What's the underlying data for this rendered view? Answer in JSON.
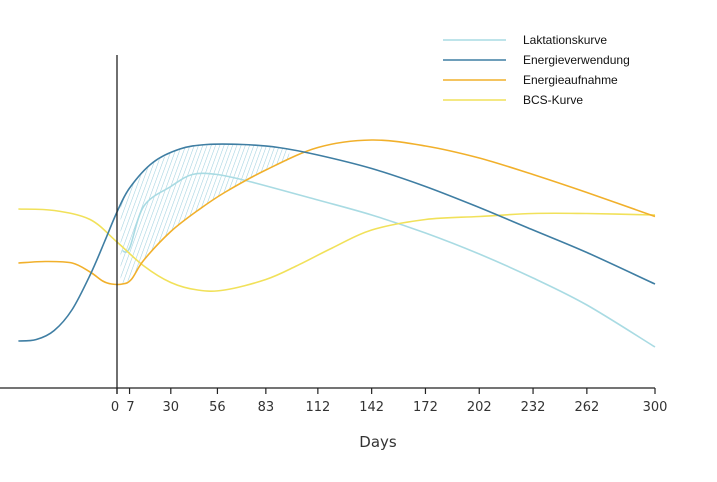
{
  "chart_data": {
    "type": "line",
    "xlabel": "Days",
    "ticks": [
      0,
      7,
      30,
      56,
      83,
      112,
      142,
      172,
      202,
      232,
      262,
      300
    ],
    "xlim": [
      -55,
      300
    ],
    "legend_position": "top-right",
    "grid": false,
    "series": [
      {
        "name": "Laktationskurve",
        "color": "#a9dbe3",
        "points": [
          [
            3,
            6
          ],
          [
            7,
            8
          ],
          [
            15,
            36
          ],
          [
            30,
            49
          ],
          [
            42,
            57
          ],
          [
            56,
            57
          ],
          [
            75,
            52
          ],
          [
            112,
            40
          ],
          [
            142,
            30
          ],
          [
            172,
            18
          ],
          [
            202,
            4
          ],
          [
            232,
            -12
          ],
          [
            262,
            -30
          ],
          [
            300,
            -58
          ]
        ]
      },
      {
        "name": "Energieverwendung",
        "color": "#3f7ea3",
        "points": [
          [
            -55,
            -54
          ],
          [
            -45,
            -53
          ],
          [
            -35,
            -47
          ],
          [
            -25,
            -33
          ],
          [
            -15,
            -10
          ],
          [
            -7,
            12
          ],
          [
            0,
            32
          ],
          [
            7,
            48
          ],
          [
            20,
            65
          ],
          [
            35,
            74
          ],
          [
            50,
            77
          ],
          [
            70,
            77
          ],
          [
            90,
            75
          ],
          [
            112,
            70
          ],
          [
            142,
            61
          ],
          [
            172,
            49
          ],
          [
            202,
            35
          ],
          [
            232,
            20
          ],
          [
            262,
            5
          ],
          [
            300,
            -16
          ]
        ]
      },
      {
        "name": "Energieaufnahme",
        "color": "#f1b02b",
        "points": [
          [
            -55,
            -2
          ],
          [
            -40,
            -1
          ],
          [
            -25,
            -2
          ],
          [
            -15,
            -8
          ],
          [
            -8,
            -14
          ],
          [
            -3,
            -16
          ],
          [
            3,
            -16
          ],
          [
            8,
            -13
          ],
          [
            15,
            0
          ],
          [
            30,
            19
          ],
          [
            45,
            33
          ],
          [
            60,
            45
          ],
          [
            83,
            60
          ],
          [
            112,
            75
          ],
          [
            142,
            80
          ],
          [
            172,
            76
          ],
          [
            202,
            68
          ],
          [
            232,
            57
          ],
          [
            262,
            45
          ],
          [
            300,
            29
          ]
        ]
      },
      {
        "name": "BCS-Kurve",
        "color": "#f1e15a",
        "points": [
          [
            -55,
            34
          ],
          [
            -35,
            33
          ],
          [
            -15,
            27
          ],
          [
            0,
            12
          ],
          [
            15,
            -4
          ],
          [
            30,
            -15
          ],
          [
            45,
            -20
          ],
          [
            60,
            -20
          ],
          [
            83,
            -13
          ],
          [
            100,
            -4
          ],
          [
            120,
            8
          ],
          [
            142,
            20
          ],
          [
            172,
            27
          ],
          [
            202,
            29
          ],
          [
            232,
            31
          ],
          [
            262,
            31
          ],
          [
            300,
            30
          ]
        ]
      }
    ]
  }
}
